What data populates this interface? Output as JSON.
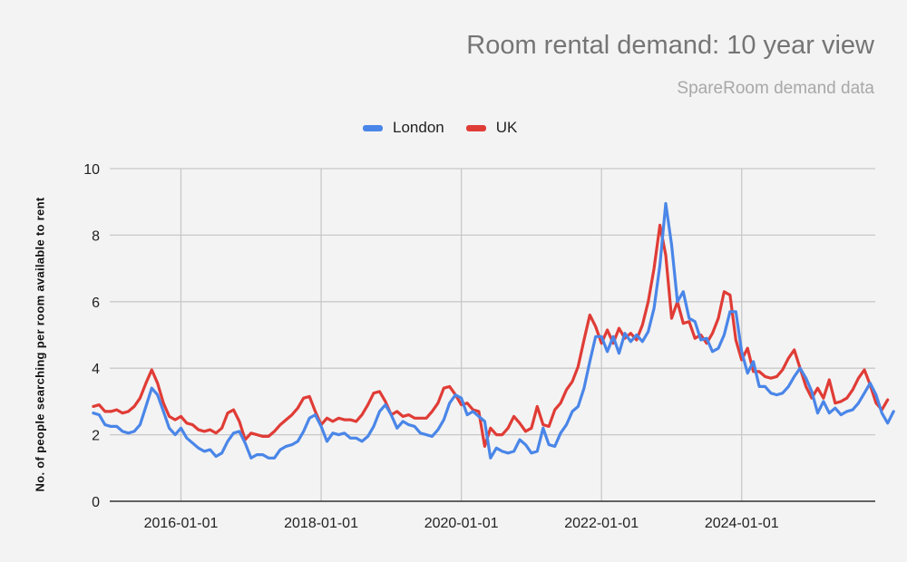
{
  "chart_data": {
    "type": "line",
    "title": "Room rental demand: 10 year view",
    "subtitle": "SpareRoom demand data",
    "xlabel": "",
    "ylabel": "No. of people searching per room available to rent",
    "ylim": [
      0,
      10
    ],
    "yticks": [
      0,
      2,
      4,
      6,
      8,
      10
    ],
    "xticks": [
      "2016-01-01",
      "2018-01-01",
      "2020-01-01",
      "2022-01-01",
      "2024-01-01"
    ],
    "grid": true,
    "legend_position": "top",
    "x_start": "2014-10",
    "x_step": "month",
    "series": [
      {
        "name": "London",
        "color": "#4a86e8",
        "values": [
          2.65,
          2.6,
          2.3,
          2.25,
          2.25,
          2.1,
          2.05,
          2.1,
          2.3,
          2.85,
          3.4,
          3.2,
          2.7,
          2.2,
          2.0,
          2.2,
          1.9,
          1.75,
          1.6,
          1.5,
          1.55,
          1.35,
          1.45,
          1.8,
          2.05,
          2.1,
          1.75,
          1.3,
          1.4,
          1.4,
          1.3,
          1.3,
          1.55,
          1.65,
          1.7,
          1.8,
          2.1,
          2.5,
          2.6,
          2.25,
          1.8,
          2.05,
          2.0,
          2.05,
          1.9,
          1.9,
          1.8,
          1.95,
          2.25,
          2.7,
          2.9,
          2.6,
          2.2,
          2.4,
          2.3,
          2.25,
          2.05,
          2.0,
          1.95,
          2.15,
          2.45,
          2.95,
          3.2,
          3.1,
          2.6,
          2.7,
          2.55,
          2.4,
          1.3,
          1.6,
          1.5,
          1.45,
          1.5,
          1.85,
          1.7,
          1.45,
          1.5,
          2.2,
          1.7,
          1.65,
          2.05,
          2.3,
          2.7,
          2.85,
          3.4,
          4.2,
          4.95,
          4.95,
          4.5,
          4.95,
          4.45,
          5.05,
          4.8,
          5.0,
          4.8,
          5.1,
          5.8,
          7.1,
          8.95,
          7.7,
          6.0,
          6.3,
          5.5,
          5.4,
          4.85,
          4.9,
          4.5,
          4.6,
          5.0,
          5.7,
          5.7,
          4.5,
          3.85,
          4.2,
          3.45,
          3.45,
          3.25,
          3.2,
          3.25,
          3.45,
          3.75,
          4.0,
          3.7,
          3.3,
          2.65,
          3.0,
          2.65,
          2.8,
          2.6,
          2.7,
          2.75,
          2.95,
          3.25,
          3.55,
          3.2,
          2.65,
          2.35,
          2.7
        ]
      },
      {
        "name": "UK",
        "color": "#e03c36",
        "values": [
          2.85,
          2.9,
          2.7,
          2.7,
          2.75,
          2.65,
          2.7,
          2.85,
          3.1,
          3.55,
          3.95,
          3.55,
          2.95,
          2.55,
          2.45,
          2.55,
          2.35,
          2.3,
          2.15,
          2.1,
          2.15,
          2.05,
          2.2,
          2.65,
          2.75,
          2.4,
          1.85,
          2.05,
          2.0,
          1.95,
          1.95,
          2.1,
          2.3,
          2.45,
          2.6,
          2.8,
          3.1,
          3.15,
          2.7,
          2.3,
          2.5,
          2.4,
          2.5,
          2.45,
          2.45,
          2.4,
          2.6,
          2.9,
          3.25,
          3.3,
          3.0,
          2.6,
          2.7,
          2.55,
          2.6,
          2.5,
          2.5,
          2.5,
          2.7,
          2.95,
          3.4,
          3.45,
          3.2,
          2.9,
          2.95,
          2.75,
          2.7,
          1.65,
          2.2,
          2.0,
          2.0,
          2.2,
          2.55,
          2.35,
          2.1,
          2.2,
          2.85,
          2.3,
          2.25,
          2.75,
          2.95,
          3.35,
          3.6,
          4.05,
          4.85,
          5.6,
          5.25,
          4.75,
          5.15,
          4.75,
          5.2,
          4.9,
          5.05,
          4.85,
          5.3,
          6.0,
          7.0,
          8.3,
          7.4,
          5.5,
          6.0,
          5.35,
          5.4,
          4.9,
          5.0,
          4.75,
          5.05,
          5.5,
          6.3,
          6.2,
          4.85,
          4.25,
          4.6,
          3.9,
          3.9,
          3.75,
          3.7,
          3.75,
          3.95,
          4.3,
          4.55,
          4.0,
          3.45,
          3.1,
          3.4,
          3.1,
          3.65,
          2.95,
          3.0,
          3.1,
          3.35,
          3.7,
          3.95,
          3.5,
          2.95,
          2.75,
          3.05
        ]
      }
    ]
  }
}
